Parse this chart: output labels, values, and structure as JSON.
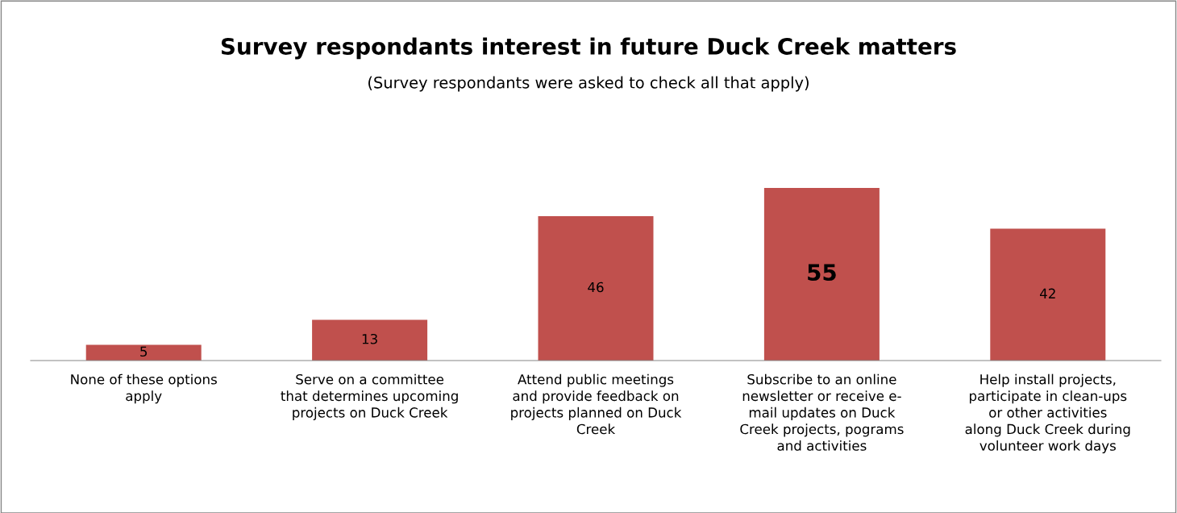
{
  "chart_data": {
    "type": "bar",
    "title": "Survey respondants interest in future Duck Creek matters",
    "subtitle": "(Survey respondants were asked to check all that apply)",
    "categories": [
      "None of these options apply",
      "Serve on a committee that determines upcoming projects on Duck Creek",
      "Attend public meetings and provide feedback on projects planned on Duck Creek",
      "Subscribe to an online newsletter or receive e-mail updates on Duck Creek projects, pograms and activities",
      "Help install projects, participate in clean-ups or other activities along Duck Creek during volunteer work days"
    ],
    "values": [
      5,
      13,
      46,
      55,
      42
    ],
    "color": "#c0504d",
    "data_labels": true,
    "grid": false,
    "legend": false
  }
}
